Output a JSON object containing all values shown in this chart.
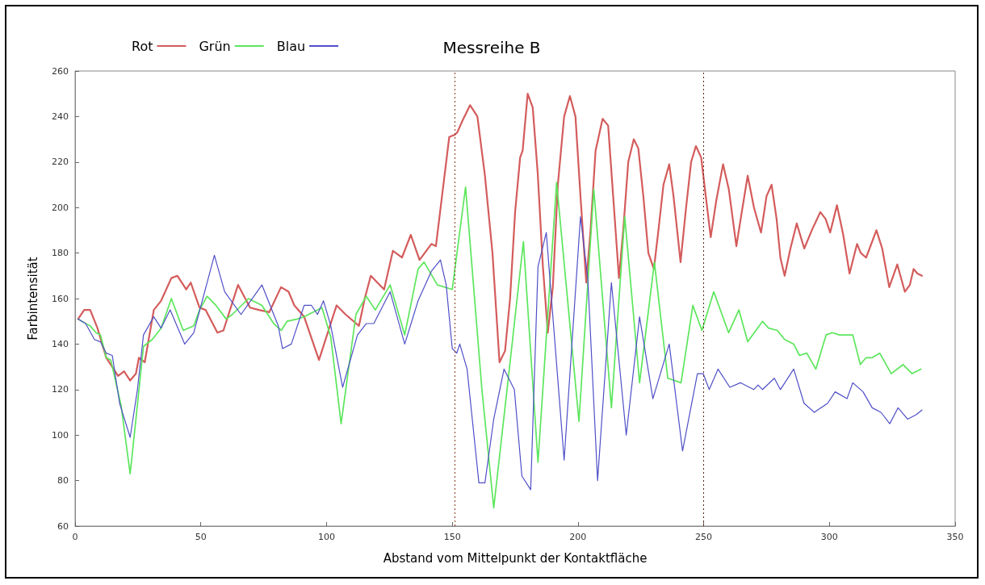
{
  "chart_data": {
    "type": "line",
    "title": "Messreihe B",
    "xlabel": "Abstand vom Mittelpunkt der Kontaktfläche",
    "ylabel": "Farbintensität",
    "xlim": [
      0,
      350
    ],
    "xticks": [
      0,
      50,
      100,
      150,
      200,
      250,
      300,
      350
    ],
    "ylim": [
      60,
      260
    ],
    "yticks": [
      60,
      80,
      100,
      120,
      140,
      160,
      180,
      200,
      220,
      240,
      260
    ],
    "grid": false,
    "legend": "top left",
    "marker": "none",
    "line_style": "solid",
    "ref_lines": [
      {
        "axis": "x",
        "value": 151,
        "color": "#8b3a1a",
        "line_style": "dotted"
      },
      {
        "axis": "x",
        "value": 250,
        "color": "#5a2a1a",
        "line_style": "dotted"
      }
    ],
    "series": [
      {
        "name": "Rot",
        "color": "#d45c5c",
        "x": [
          1.2,
          3.6,
          6,
          8.9,
          12.4,
          17.1,
          19.5,
          21.9,
          24.2,
          25.4,
          27.7,
          31.3,
          34.2,
          38.3,
          40.7,
          44.2,
          46,
          49.5,
          51.9,
          56.6,
          59,
          64.8,
          69.6,
          73.1,
          77.2,
          81.9,
          84.9,
          87.2,
          91.1,
          97,
          104,
          107.6,
          112.9,
          115.2,
          117.6,
          122.9,
          126.4,
          130,
          133.5,
          137,
          141.7,
          143.5,
          148.8,
          151,
          152,
          154,
          157.1,
          160,
          163,
          166,
          168.8,
          171,
          173,
          175,
          177,
          178,
          180,
          182,
          184,
          186,
          188,
          190,
          192,
          194.5,
          196.8,
          199,
          201,
          203.3,
          205,
          207,
          209.8,
          212,
          214,
          216.3,
          218,
          220,
          222.2,
          224,
          226,
          228,
          230.2,
          232,
          234,
          236.3,
          238,
          240.8,
          243,
          245,
          246.9,
          249,
          250.5,
          252.8,
          255,
          257.7,
          260,
          263,
          265,
          267.5,
          270,
          272.8,
          275,
          277,
          279,
          280.5,
          282.2,
          284.5,
          287,
          290,
          293,
          296.4,
          298.5,
          300.3,
          303,
          305.5,
          308,
          311,
          312.5,
          314.6,
          318.7,
          321,
          323.8,
          327,
          330,
          332,
          333.5,
          335,
          336.8
        ],
        "values": [
          151,
          155,
          155,
          147,
          134,
          126,
          128,
          124,
          127,
          134,
          132,
          155,
          159,
          169,
          170,
          164,
          167,
          156,
          155,
          145,
          146,
          166,
          156,
          155,
          154,
          165,
          163,
          157,
          152,
          133,
          157,
          153,
          148,
          160,
          170,
          164,
          181,
          178,
          188,
          177,
          184,
          183,
          231,
          232,
          233,
          238,
          245,
          240,
          214,
          180,
          132,
          137,
          160,
          198,
          222,
          225,
          250,
          244,
          215,
          175,
          145,
          165,
          210,
          240,
          249,
          240,
          205,
          167,
          190,
          225,
          239,
          236,
          205,
          169,
          190,
          220,
          230,
          226,
          205,
          180,
          173,
          190,
          210,
          219,
          205,
          176,
          200,
          220,
          227,
          222,
          208,
          187,
          203,
          219,
          208,
          183,
          197,
          214,
          200,
          189,
          205,
          210,
          195,
          178,
          170,
          182,
          193,
          182,
          190,
          198,
          195,
          189,
          201,
          188,
          171,
          184,
          180,
          178,
          190,
          182,
          165,
          175,
          163,
          166,
          173,
          171,
          170
        ]
      },
      {
        "name": "Grün",
        "color": "#5ce65c",
        "x": [
          1.2,
          4.2,
          6,
          8.3,
          10.1,
          12.4,
          14.2,
          18.3,
          21.9,
          24.2,
          27.2,
          30.7,
          34.2,
          38.3,
          43,
          47.2,
          49.5,
          52.5,
          56,
          60.1,
          62.5,
          69,
          74.3,
          79,
          82,
          84.3,
          88.4,
          91.1,
          98.2,
          101.7,
          105.8,
          111.7,
          115.8,
          119.4,
          125.3,
          131.1,
          136.4,
          138.8,
          144.1,
          150,
          155.3,
          161.8,
          166.5,
          172.4,
          178.3,
          184.1,
          191.5,
          200.4,
          206.3,
          213.3,
          218.6,
          224.5,
          230.4,
          235.7,
          241,
          245.7,
          249.3,
          254,
          259.9,
          264,
          267.5,
          273.4,
          275.8,
          279.3,
          282.2,
          285.8,
          288.1,
          291,
          294.6,
          298.7,
          301.1,
          304,
          309.3,
          312.3,
          314.6,
          317,
          320,
          324.6,
          329.3,
          332.9,
          336.4
        ],
        "values": [
          151,
          149,
          148,
          145,
          144,
          134,
          133,
          113,
          83,
          107,
          139,
          142,
          147,
          160,
          146,
          148,
          155,
          161,
          157,
          151,
          153,
          160,
          157,
          149,
          146,
          150,
          151,
          152,
          156,
          143,
          105,
          153,
          161,
          155,
          166,
          144,
          173,
          176,
          166,
          164,
          209,
          120,
          68,
          126,
          185,
          88,
          211,
          106,
          208,
          112,
          196,
          123,
          176,
          125,
          123,
          157,
          146,
          163,
          145,
          155,
          141,
          150,
          147,
          146,
          142,
          140,
          135,
          136,
          129,
          144,
          145,
          144,
          144,
          131,
          134,
          134,
          136,
          127,
          131,
          127,
          129
        ]
      },
      {
        "name": "Blau",
        "color": "#4f4fc8",
        "x": [
          1.2,
          4.2,
          7.7,
          10.1,
          12.4,
          14.8,
          17.7,
          21.9,
          24.8,
          27.2,
          31.3,
          34.2,
          37.8,
          43.6,
          47.2,
          55.4,
          59.5,
          66,
          74.3,
          80.8,
          82.5,
          86,
          91.1,
          94,
          96.4,
          98.8,
          101.7,
          106.4,
          112.3,
          115.8,
          118.8,
          125.3,
          131.1,
          136.4,
          141.7,
          145.3,
          147.6,
          150,
          151.8,
          153,
          155.9,
          160.6,
          163,
          166.5,
          170.6,
          174.7,
          177.7,
          181.2,
          184.1,
          187.4,
          194.5,
          201,
          203.9,
          207.8,
          213.3,
          219.2,
          224.5,
          229.8,
          236.3,
          241.6,
          247.5,
          249.8,
          252.2,
          255.7,
          260.4,
          264.6,
          269.9,
          271.6,
          273.4,
          278.1,
          280.5,
          285.8,
          289.9,
          294,
          299.3,
          302.3,
          307,
          309.3,
          313.4,
          317,
          320.5,
          324,
          327.3,
          331.1,
          334.6,
          336.8
        ],
        "values": [
          151,
          149,
          142,
          141,
          136,
          135,
          114,
          99,
          120,
          144,
          152,
          147,
          155,
          140,
          145,
          179,
          163,
          153,
          166,
          148,
          138,
          140,
          157,
          157,
          153,
          159,
          148,
          121,
          144,
          149,
          149,
          163,
          140,
          159,
          172,
          177,
          166,
          138,
          136,
          140,
          129,
          79,
          79,
          107,
          129,
          120,
          82,
          76,
          174,
          189,
          89,
          196,
          169,
          80,
          167,
          100,
          152,
          116,
          140,
          93,
          127,
          127,
          120,
          129,
          121,
          123,
          120,
          122,
          120,
          125,
          120,
          129,
          114,
          110,
          114,
          119,
          116,
          123,
          119,
          112,
          110,
          105,
          112,
          107,
          109,
          111
        ]
      }
    ]
  }
}
